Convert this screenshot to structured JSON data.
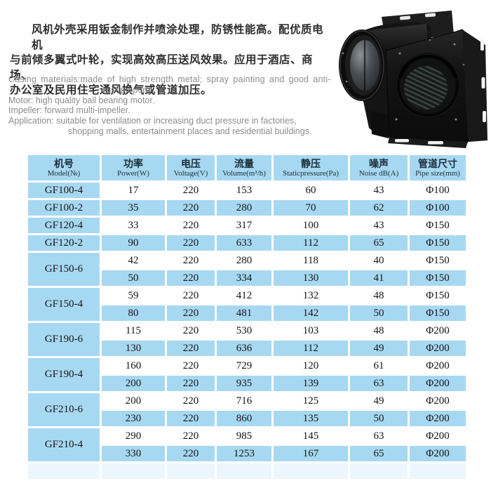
{
  "colors": {
    "accent_blue": "#a7d8f2",
    "header_text": "#1a2d37",
    "value_text": "#141414",
    "description_text": "#8c8c8c"
  },
  "intro": {
    "zh_lines": [
      "风机外壳采用钣金制作并喷涂处理，防锈性能高。配优质电机",
      "与前倾多翼式叶轮，实现高效高压送风效果。应用于酒店、商场、",
      "办公室及民用住宅通风换气或管道加压。"
    ],
    "en_lines": [
      "Casing materials:made of high strength metal; spray painting and good anti-",
      "rust property.",
      "Motor: high quality ball bearing motor.",
      "Impeller: forward multi-impeller.",
      "Application: suitable for ventilation or increasing duct pressure  in factories,",
      "shopping malls, entertainment places and residential buildings."
    ]
  },
  "table": {
    "headers": [
      {
        "zh": "机号",
        "en": "Model(№)"
      },
      {
        "zh": "功率",
        "en": "Power(W)"
      },
      {
        "zh": "电压",
        "en": "Voltage(V)"
      },
      {
        "zh": "流量",
        "en": "Volume(m³/h)"
      },
      {
        "zh": "静压",
        "en": "Staticpressure(Pa)"
      },
      {
        "zh": "噪声",
        "en": "Noise dB(A)"
      },
      {
        "zh": "管道尺寸",
        "en": "Pipe size(mm)"
      }
    ],
    "groups": [
      {
        "model": "GF100-4",
        "rows": [
          [
            "17",
            "220",
            "153",
            "60",
            "43",
            "Φ100"
          ]
        ]
      },
      {
        "model": "GF100-2",
        "rows": [
          [
            "35",
            "220",
            "280",
            "70",
            "62",
            "Φ100"
          ]
        ]
      },
      {
        "model": "GF120-4",
        "rows": [
          [
            "33",
            "220",
            "317",
            "100",
            "43",
            "Φ150"
          ]
        ]
      },
      {
        "model": "GF120-2",
        "rows": [
          [
            "90",
            "220",
            "633",
            "112",
            "65",
            "Φ150"
          ]
        ]
      },
      {
        "model": "GF150-6",
        "rows": [
          [
            "42",
            "220",
            "280",
            "118",
            "40",
            "Φ150"
          ],
          [
            "50",
            "220",
            "334",
            "130",
            "41",
            "Φ150"
          ]
        ]
      },
      {
        "model": "GF150-4",
        "rows": [
          [
            "59",
            "220",
            "412",
            "132",
            "48",
            "Φ150"
          ],
          [
            "80",
            "220",
            "481",
            "142",
            "50",
            "Φ150"
          ]
        ]
      },
      {
        "model": "GF190-6",
        "rows": [
          [
            "115",
            "220",
            "530",
            "103",
            "48",
            "Φ200"
          ],
          [
            "130",
            "220",
            "636",
            "112",
            "49",
            "Φ200"
          ]
        ]
      },
      {
        "model": "GF190-4",
        "rows": [
          [
            "160",
            "220",
            "729",
            "120",
            "61",
            "Φ200"
          ],
          [
            "200",
            "220",
            "935",
            "139",
            "63",
            "Φ200"
          ]
        ]
      },
      {
        "model": "GF210-6",
        "rows": [
          [
            "200",
            "220",
            "716",
            "125",
            "49",
            "Φ200"
          ],
          [
            "230",
            "220",
            "860",
            "135",
            "50",
            "Φ200"
          ]
        ]
      },
      {
        "model": "GF210-4",
        "rows": [
          [
            "290",
            "220",
            "985",
            "145",
            "63",
            "Φ200"
          ],
          [
            "330",
            "220",
            "1253",
            "167",
            "65",
            "Φ200"
          ]
        ]
      }
    ]
  }
}
